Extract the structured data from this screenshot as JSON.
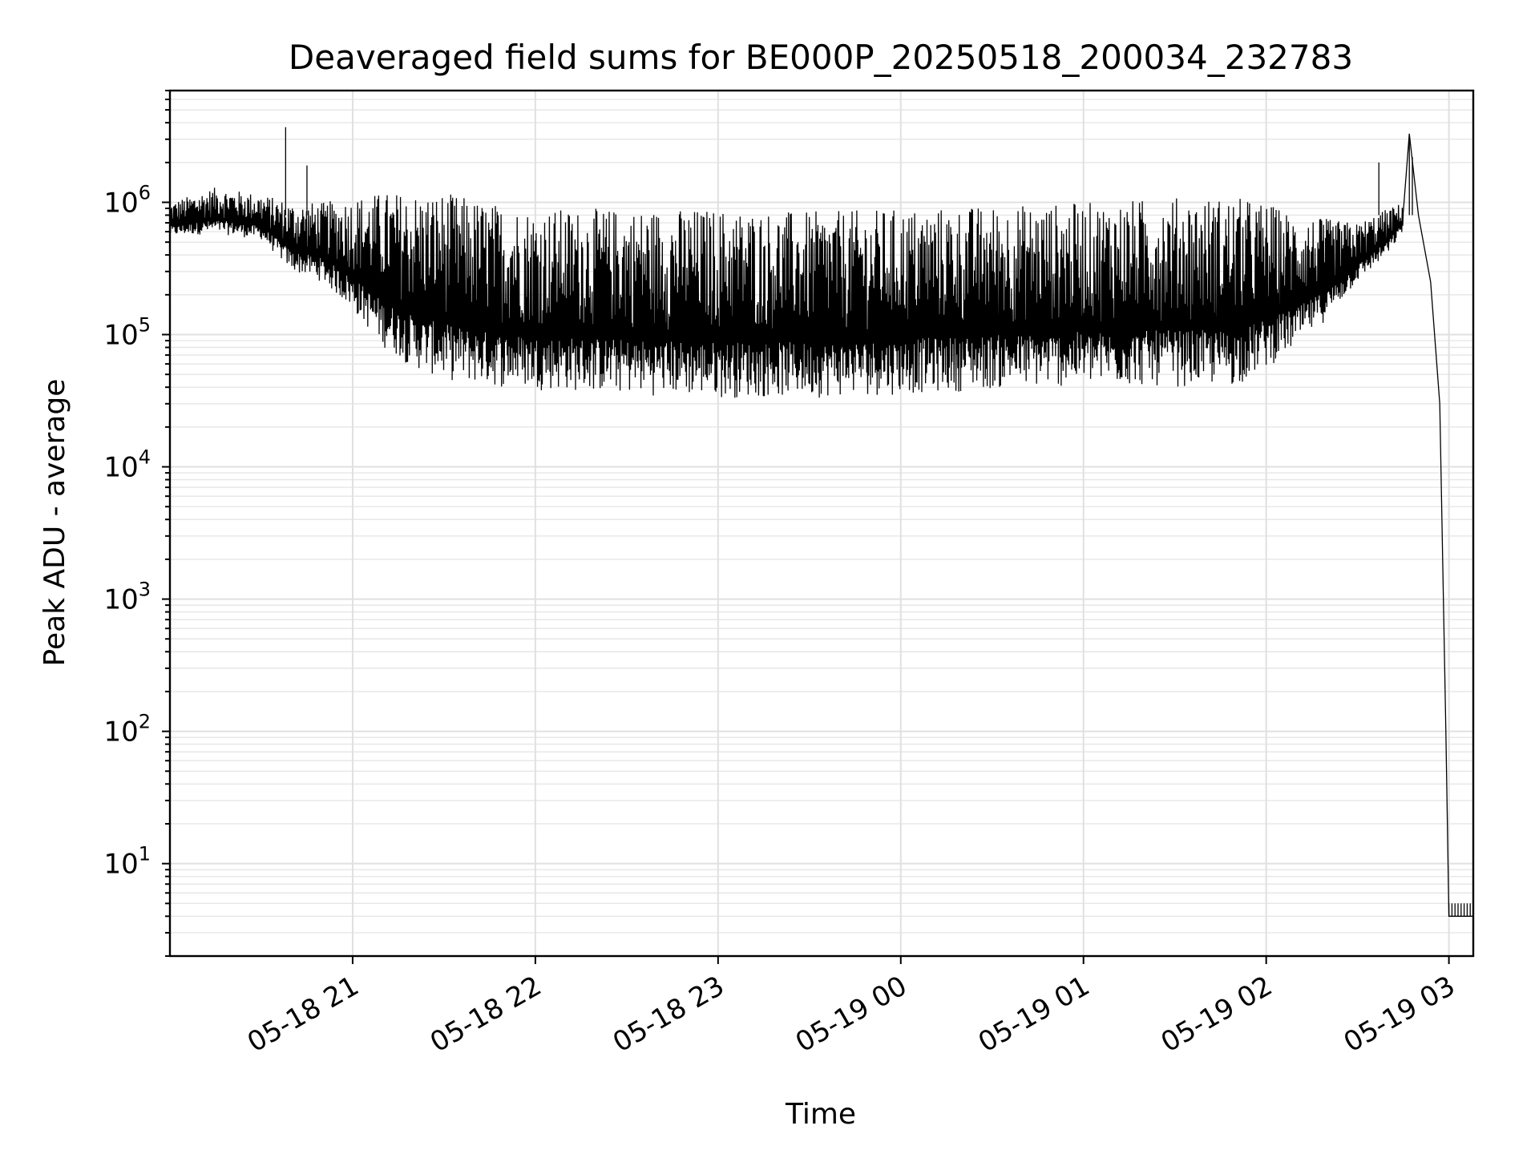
{
  "chart_data": {
    "type": "line",
    "title": "Deaveraged field sums for BE000P_20250518_200034_232783",
    "xlabel": "Time",
    "ylabel": "Peak ADU - average",
    "yscale": "log",
    "grid": true,
    "xlim": [
      "2025-05-18 20:00",
      "2025-05-19 03:08"
    ],
    "ylim": [
      2,
      7000000
    ],
    "x_ticks": [
      {
        "t": "2025-05-18 21:00",
        "label": "05-18 21"
      },
      {
        "t": "2025-05-18 22:00",
        "label": "05-18 22"
      },
      {
        "t": "2025-05-18 23:00",
        "label": "05-18 23"
      },
      {
        "t": "2025-05-19 00:00",
        "label": "05-19 00"
      },
      {
        "t": "2025-05-19 01:00",
        "label": "05-19 01"
      },
      {
        "t": "2025-05-19 02:00",
        "label": "05-19 02"
      },
      {
        "t": "2025-05-19 03:00",
        "label": "05-19 03"
      }
    ],
    "y_ticks": [
      {
        "value": 10,
        "base": "10",
        "exp": "1"
      },
      {
        "value": 100,
        "base": "10",
        "exp": "2"
      },
      {
        "value": 1000,
        "base": "10",
        "exp": "3"
      },
      {
        "value": 10000,
        "base": "10",
        "exp": "4"
      },
      {
        "value": 100000,
        "base": "10",
        "exp": "5"
      },
      {
        "value": 1000000,
        "base": "10",
        "exp": "6"
      }
    ],
    "series": [
      {
        "color": "#000000",
        "points": [
          [
            "2025-05-18 20:00",
            700000
          ],
          [
            "2025-05-18 20:10",
            850000
          ],
          [
            "2025-05-18 20:20",
            800000
          ],
          [
            "2025-05-18 20:30",
            750000
          ],
          [
            "2025-05-18 20:38",
            3700000
          ],
          [
            "2025-05-18 20:40",
            450000
          ],
          [
            "2025-05-18 20:45",
            1900000
          ],
          [
            "2025-05-18 20:50",
            350000
          ],
          [
            "2025-05-18 21:00",
            450000
          ],
          [
            "2025-05-18 21:15",
            150000
          ],
          [
            "2025-05-18 21:30",
            80000
          ],
          [
            "2025-05-18 22:00",
            60000
          ],
          [
            "2025-05-18 22:30",
            50000
          ],
          [
            "2025-05-18 23:00",
            45000
          ],
          [
            "2025-05-18 23:30",
            45000
          ],
          [
            "2025-05-19 00:00",
            45000
          ],
          [
            "2025-05-19 00:30",
            50000
          ],
          [
            "2025-05-19 01:00",
            55000
          ],
          [
            "2025-05-19 01:30",
            50000
          ],
          [
            "2025-05-19 02:00",
            70000
          ],
          [
            "2025-05-19 02:15",
            150000
          ],
          [
            "2025-05-19 02:30",
            350000
          ],
          [
            "2025-05-19 02:40",
            600000
          ],
          [
            "2025-05-19 02:47",
            3300000
          ],
          [
            "2025-05-19 02:50",
            800000
          ],
          [
            "2025-05-19 02:54",
            250000
          ],
          [
            "2025-05-19 02:57",
            30000
          ],
          [
            "2025-05-19 02:59",
            100
          ],
          [
            "2025-05-19 03:00",
            4
          ],
          [
            "2025-05-19 03:08",
            4
          ]
        ],
        "envelope": [
          {
            "t": "2025-05-18 20:00",
            "low": 550000,
            "high": 1000000
          },
          {
            "t": "2025-05-18 20:15",
            "low": 580000,
            "high": 1300000
          },
          {
            "t": "2025-05-18 20:30",
            "low": 520000,
            "high": 1150000
          },
          {
            "t": "2025-05-18 20:40",
            "low": 300000,
            "high": 1000000
          },
          {
            "t": "2025-05-18 20:50",
            "low": 250000,
            "high": 1000000
          },
          {
            "t": "2025-05-18 21:00",
            "low": 150000,
            "high": 1100000
          },
          {
            "t": "2025-05-18 21:10",
            "low": 80000,
            "high": 1200000
          },
          {
            "t": "2025-05-18 21:20",
            "low": 55000,
            "high": 1200000
          },
          {
            "t": "2025-05-18 21:30",
            "low": 45000,
            "high": 1200000
          },
          {
            "t": "2025-05-18 21:45",
            "low": 40000,
            "high": 1000000
          },
          {
            "t": "2025-05-18 22:00",
            "low": 38000,
            "high": 900000
          },
          {
            "t": "2025-05-18 22:30",
            "low": 35000,
            "high": 900000
          },
          {
            "t": "2025-05-18 23:00",
            "low": 33000,
            "high": 900000
          },
          {
            "t": "2025-05-18 23:30",
            "low": 33000,
            "high": 850000
          },
          {
            "t": "2025-05-19 00:00",
            "low": 35000,
            "high": 900000
          },
          {
            "t": "2025-05-19 00:30",
            "low": 38000,
            "high": 950000
          },
          {
            "t": "2025-05-19 01:00",
            "low": 40000,
            "high": 1000000
          },
          {
            "t": "2025-05-19 01:30",
            "low": 40000,
            "high": 1100000
          },
          {
            "t": "2025-05-19 01:50",
            "low": 40000,
            "high": 1100000
          },
          {
            "t": "2025-05-19 02:00",
            "low": 55000,
            "high": 1000000
          },
          {
            "t": "2025-05-19 02:10",
            "low": 80000,
            "high": 800000
          },
          {
            "t": "2025-05-19 02:20",
            "low": 130000,
            "high": 750000
          },
          {
            "t": "2025-05-19 02:30",
            "low": 250000,
            "high": 700000
          },
          {
            "t": "2025-05-19 02:40",
            "low": 400000,
            "high": 900000
          },
          {
            "t": "2025-05-19 02:45",
            "low": 600000,
            "high": 1000000
          }
        ],
        "spikes": [
          {
            "t": "2025-05-18 20:38",
            "value": 3700000
          },
          {
            "t": "2025-05-18 20:45",
            "value": 1900000
          },
          {
            "t": "2025-05-19 02:37",
            "value": 2000000
          },
          {
            "t": "2025-05-19 02:47",
            "value": 3300000
          },
          {
            "t": "2025-05-19 02:48",
            "value": 2200000
          }
        ]
      }
    ]
  }
}
